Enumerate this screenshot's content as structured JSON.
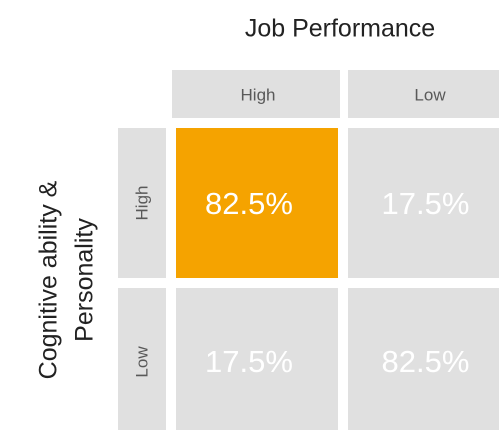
{
  "title": "Job Performance",
  "row_axis_title": [
    "Cognitive ability &",
    "Personality"
  ],
  "columns": [
    "High",
    "Low"
  ],
  "rows": [
    "High",
    "Low"
  ],
  "cells": [
    [
      "82.5%",
      "17.5%"
    ],
    [
      "17.5%",
      "82.5%"
    ]
  ],
  "highlight_color": "#f5a300",
  "cell_color": "#e0e0e0"
}
